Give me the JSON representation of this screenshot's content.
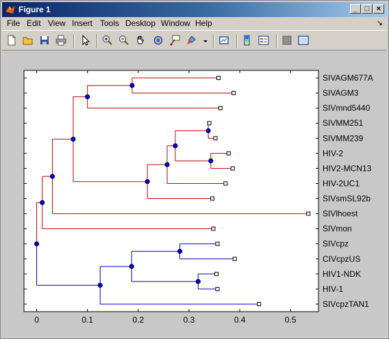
{
  "window": {
    "title": "Figure 1",
    "buttons": {
      "minimize": "_",
      "maximize": "□",
      "close": "×"
    }
  },
  "menu": {
    "items": [
      "File",
      "Edit",
      "View",
      "Insert",
      "Tools",
      "Desktop",
      "Window",
      "Help"
    ],
    "dock_arrow": "↘"
  },
  "toolbar": {
    "icons": [
      "new-figure-icon",
      "open-file-icon",
      "save-icon",
      "print-icon",
      "pointer-arrow-icon",
      "zoom-in-icon",
      "zoom-out-icon",
      "pan-hand-icon",
      "rotate-3d-icon",
      "data-cursor-icon",
      "brush-icon",
      "brush-dropdown-icon",
      "link-plot-icon",
      "colorbar-icon",
      "legend-icon",
      "hide-plot-tools-icon",
      "show-plot-tools-icon"
    ]
  },
  "chart_data": {
    "type": "dendrogram",
    "orientation": "horizontal",
    "xlim": [
      -0.025,
      0.555
    ],
    "xticks": [
      0,
      0.1,
      0.2,
      0.3,
      0.4,
      0.5
    ],
    "xtick_labels": [
      "0",
      "0.1",
      "0.2",
      "0.3",
      "0.4",
      "0.5"
    ],
    "leaves": [
      "SIVAGM677A",
      "SIVAGM3",
      "SIVmnd5440",
      "SIVMM251",
      "SIVMM239",
      "HIV-2",
      "HIV2-MCN13",
      "HIV-2UC1",
      "SIVsmSL92b",
      "SIVlhoest",
      "SIVmon",
      "SIVcpz",
      "CIVcpzUS",
      "HIV1-NDK",
      "HIV-1",
      "SIVcpzTAN1"
    ],
    "leaf_distances": [
      0.358,
      0.388,
      0.362,
      0.34,
      0.352,
      0.378,
      0.386,
      0.372,
      0.346,
      0.535,
      0.348,
      0.356,
      0.39,
      0.354,
      0.356,
      0.438
    ],
    "colors": {
      "upper_clade": "#c00000",
      "lower_clade": "#0000c0",
      "node_fill": "#0000e0",
      "leaf_fill": "#ffffff"
    },
    "nodes": [
      {
        "id": "n1",
        "x": 0.188,
        "children": [
          "L0",
          "L1"
        ],
        "clade": "upper"
      },
      {
        "id": "n2",
        "x": 0.1,
        "children": [
          "n1",
          "L2"
        ],
        "clade": "upper"
      },
      {
        "id": "n3",
        "x": 0.338,
        "children": [
          "L3",
          "L4"
        ],
        "clade": "upper"
      },
      {
        "id": "n4",
        "x": 0.343,
        "children": [
          "L5",
          "L6"
        ],
        "clade": "upper"
      },
      {
        "id": "n5",
        "x": 0.273,
        "children": [
          "n3",
          "n4"
        ],
        "clade": "upper"
      },
      {
        "id": "n6",
        "x": 0.257,
        "children": [
          "n5",
          "L7"
        ],
        "clade": "upper"
      },
      {
        "id": "n7",
        "x": 0.218,
        "children": [
          "n6",
          "L8"
        ],
        "clade": "upper"
      },
      {
        "id": "n8",
        "x": 0.072,
        "children": [
          "n2",
          "n7"
        ],
        "clade": "upper"
      },
      {
        "id": "n9",
        "x": 0.031,
        "children": [
          "n8",
          "L9"
        ],
        "clade": "upper"
      },
      {
        "id": "n10",
        "x": 0.011,
        "children": [
          "n9",
          "L10"
        ],
        "clade": "upper"
      },
      {
        "id": "n11",
        "x": 0.282,
        "children": [
          "L11",
          "L12"
        ],
        "clade": "lower"
      },
      {
        "id": "n12",
        "x": 0.318,
        "children": [
          "L13",
          "L14"
        ],
        "clade": "lower"
      },
      {
        "id": "n13",
        "x": 0.187,
        "children": [
          "n11",
          "n12"
        ],
        "clade": "lower"
      },
      {
        "id": "n14",
        "x": 0.125,
        "children": [
          "n13",
          "L15"
        ],
        "clade": "lower"
      },
      {
        "id": "root",
        "x": 0.0,
        "children": [
          "n10",
          "n14"
        ],
        "clade": "root"
      }
    ]
  }
}
